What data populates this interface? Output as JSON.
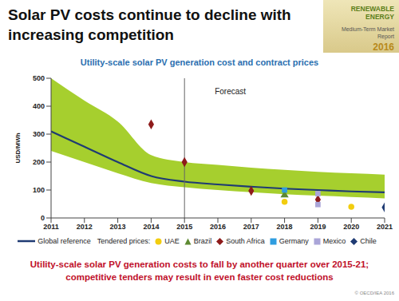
{
  "slide_title": "Solar PV costs continue to decline with increasing competition",
  "badge": [
    "RENEWABLE ENERGY",
    "Medium-Term Market Report",
    "2016"
  ],
  "caption": [
    "Utility-scale solar PV generation costs to fall by another quarter over 2015-21;",
    "competitive tenders may result in even faster cost reductions"
  ],
  "copyright": "© OECD/IEA 2016",
  "chart_data": {
    "type": "line",
    "title": "Utility-scale solar PV generation cost and contract prices",
    "y_label": "USD/MWh",
    "x": [
      2011,
      2012,
      2013,
      2014,
      2015,
      2016,
      2017,
      2018,
      2019,
      2020,
      2021
    ],
    "xlim": [
      2011,
      2021
    ],
    "xticks": [
      2011,
      2012,
      2013,
      2014,
      2015,
      2016,
      2017,
      2018,
      2019,
      2020,
      2021
    ],
    "ylim": [
      0,
      500
    ],
    "yticks": [
      0,
      100,
      200,
      300,
      400,
      500
    ],
    "grid": false,
    "band": {
      "color": "#a6cf2e",
      "low": [
        240,
        200,
        160,
        125,
        110,
        100,
        92,
        85,
        80,
        75,
        70
      ],
      "high": [
        500,
        420,
        345,
        225,
        200,
        190,
        180,
        172,
        165,
        160,
        155
      ]
    },
    "annotations": [
      {
        "text": "Forecast",
        "x": 2015
      }
    ],
    "legend_title": "Tendered prices:",
    "series": [
      {
        "name": "Global reference",
        "type": "line",
        "color": "#1f3b73",
        "values": [
          310,
          255,
          200,
          150,
          130,
          120,
          112,
          105,
          100,
          95,
          92
        ]
      },
      {
        "name": "UAE",
        "type": "scatter",
        "marker": "circle",
        "color": "#f2cd0f",
        "x": [
          2018,
          2020
        ],
        "values": [
          58,
          40
        ]
      },
      {
        "name": "Brazil",
        "type": "scatter",
        "marker": "triangle",
        "color": "#5e8a32",
        "x": [
          2018
        ],
        "values": [
          82
        ]
      },
      {
        "name": "South Africa",
        "type": "scatter",
        "marker": "diamond",
        "color": "#8e1b1b",
        "x": [
          2014,
          2015,
          2017,
          2019
        ],
        "values": [
          335,
          200,
          97,
          66
        ]
      },
      {
        "name": "Germany",
        "type": "scatter",
        "marker": "square",
        "color": "#2f9de0",
        "x": [
          2018
        ],
        "values": [
          100
        ]
      },
      {
        "name": "Mexico",
        "type": "scatter",
        "marker": "square",
        "color": "#aaa5d8",
        "x": [
          2019,
          2019
        ],
        "values": [
          87,
          48
        ]
      },
      {
        "name": "Chile",
        "type": "scatter",
        "marker": "diamond",
        "color": "#1f3b73",
        "x": [
          2021
        ],
        "values": [
          38
        ]
      }
    ]
  }
}
